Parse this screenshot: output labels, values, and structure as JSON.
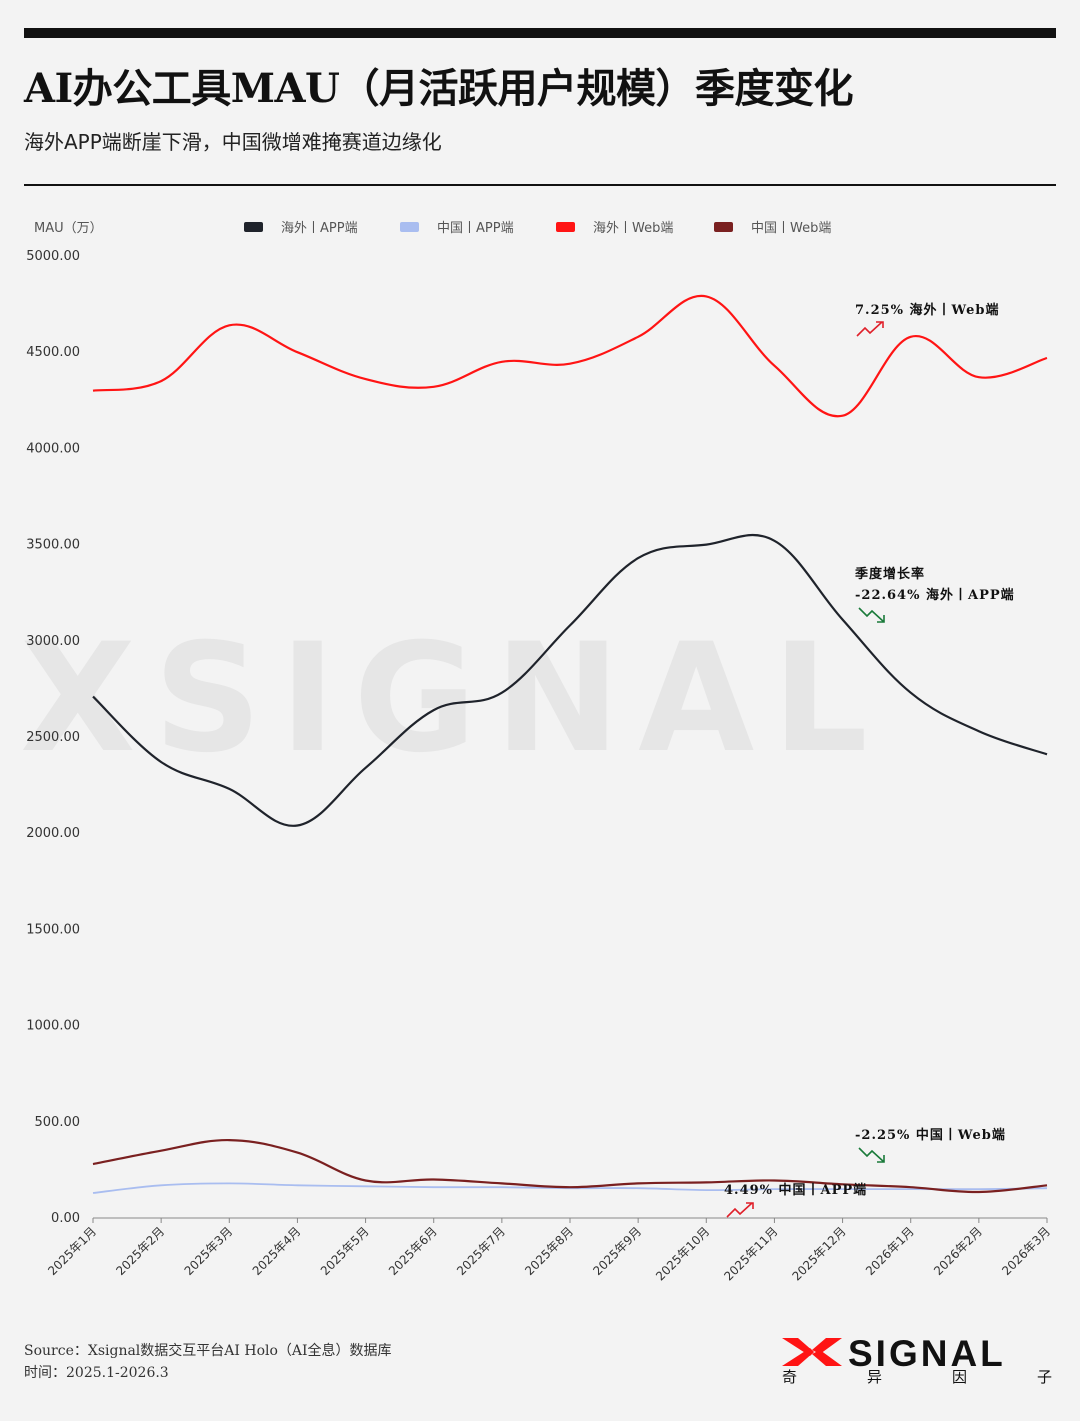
{
  "header": {
    "title": "AI办公工具MAU（月活跃用户规模）季度变化",
    "subtitle": "海外APP端断崖下滑，中国微增难掩赛道边缘化"
  },
  "watermark": "XSIGNAL",
  "colors": {
    "overseas_app": "#1f232b",
    "china_app": "#a9bdf0",
    "overseas_web": "#ff1414",
    "china_web": "#7a2020",
    "up": "#e0202a",
    "down": "#1a7a3a"
  },
  "chart_data": {
    "type": "line",
    "title": "AI办公工具MAU（月活跃用户规模）季度变化",
    "ylabel": "MAU（万）",
    "xlabel": "",
    "ylim": [
      0,
      5000
    ],
    "y_ticks": [
      "0.00",
      "500.00",
      "1000.00",
      "1500.00",
      "2000.00",
      "2500.00",
      "3000.00",
      "3500.00",
      "4000.00",
      "4500.00",
      "5000.00"
    ],
    "categories": [
      "2025年1月",
      "2025年2月",
      "2025年3月",
      "2025年4月",
      "2025年5月",
      "2025年6月",
      "2025年7月",
      "2025年8月",
      "2025年9月",
      "2025年10月",
      "2025年11月",
      "2025年12月",
      "2026年1月",
      "2026年2月",
      "2026年3月"
    ],
    "legend_position": "top",
    "series": [
      {
        "key": "overseas_app",
        "name": "海外丨APP端",
        "values": [
          2710,
          2370,
          2230,
          2040,
          2340,
          2640,
          2730,
          3080,
          3430,
          3500,
          3520,
          3110,
          2730,
          2530,
          2410
        ]
      },
      {
        "key": "china_app",
        "name": "中国丨APP端",
        "values": [
          130,
          170,
          180,
          170,
          165,
          160,
          160,
          155,
          155,
          145,
          150,
          150,
          150,
          150,
          155
        ]
      },
      {
        "key": "overseas_web",
        "name": "海外丨Web端",
        "values": [
          4300,
          4350,
          4640,
          4500,
          4360,
          4320,
          4450,
          4440,
          4580,
          4790,
          4430,
          4170,
          4580,
          4370,
          4470
        ]
      },
      {
        "key": "china_web",
        "name": "中国丨Web端",
        "values": [
          280,
          350,
          405,
          340,
          195,
          200,
          180,
          160,
          180,
          185,
          195,
          175,
          160,
          135,
          170
        ]
      }
    ],
    "annotations": [
      {
        "series": "overseas_web",
        "label": "7.25%  海外丨Web端",
        "direction": "up"
      },
      {
        "series": "overseas_app",
        "label_top": "季度增长率",
        "label": "-22.64%  海外丨APP端",
        "direction": "down"
      },
      {
        "series": "china_web",
        "label": "-2.25%  中国丨Web端",
        "direction": "down"
      },
      {
        "series": "china_app",
        "label": "4.49%  中国丨APP端",
        "direction": "up"
      }
    ]
  },
  "footer": {
    "source": "Source：Xsignal数据交互平台AI Holo（AI全息）数据库",
    "period": "时间：2025.1-2026.3"
  },
  "brand": {
    "name": "SIGNAL",
    "subtitle_chars": [
      "奇",
      "异",
      "因",
      "子"
    ]
  }
}
